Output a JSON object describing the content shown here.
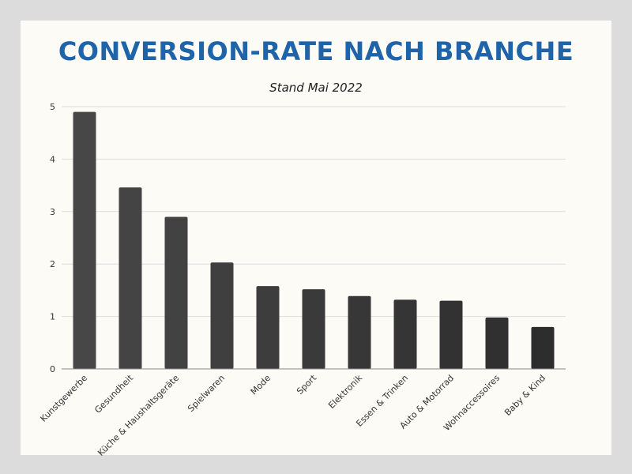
{
  "chart_data": {
    "type": "bar",
    "title": "CONVERSION-RATE NACH BRANCHE",
    "subtitle": "Stand Mai 2022",
    "xlabel": "",
    "ylabel": "",
    "categories": [
      "Kunstgewerbe",
      "Gesundheit",
      "Küche & Haushaltsgeräte",
      "Spielwaren",
      "Mode",
      "Sport",
      "Elektronik",
      "Essen & Trinken",
      "Auto & Motorrad",
      "Wohnaccessoires",
      "Baby & Kind"
    ],
    "values": [
      4.9,
      3.46,
      2.9,
      2.03,
      1.58,
      1.52,
      1.39,
      1.32,
      1.3,
      0.98,
      0.8
    ],
    "ylim": [
      0,
      5
    ],
    "yticks": [
      "0",
      "1",
      "2",
      "3",
      "4",
      "5"
    ],
    "grid": true,
    "bar_color_top": "#474747",
    "bar_color_bottom": "#2d2d2d",
    "title_color": "#1f63a8"
  }
}
